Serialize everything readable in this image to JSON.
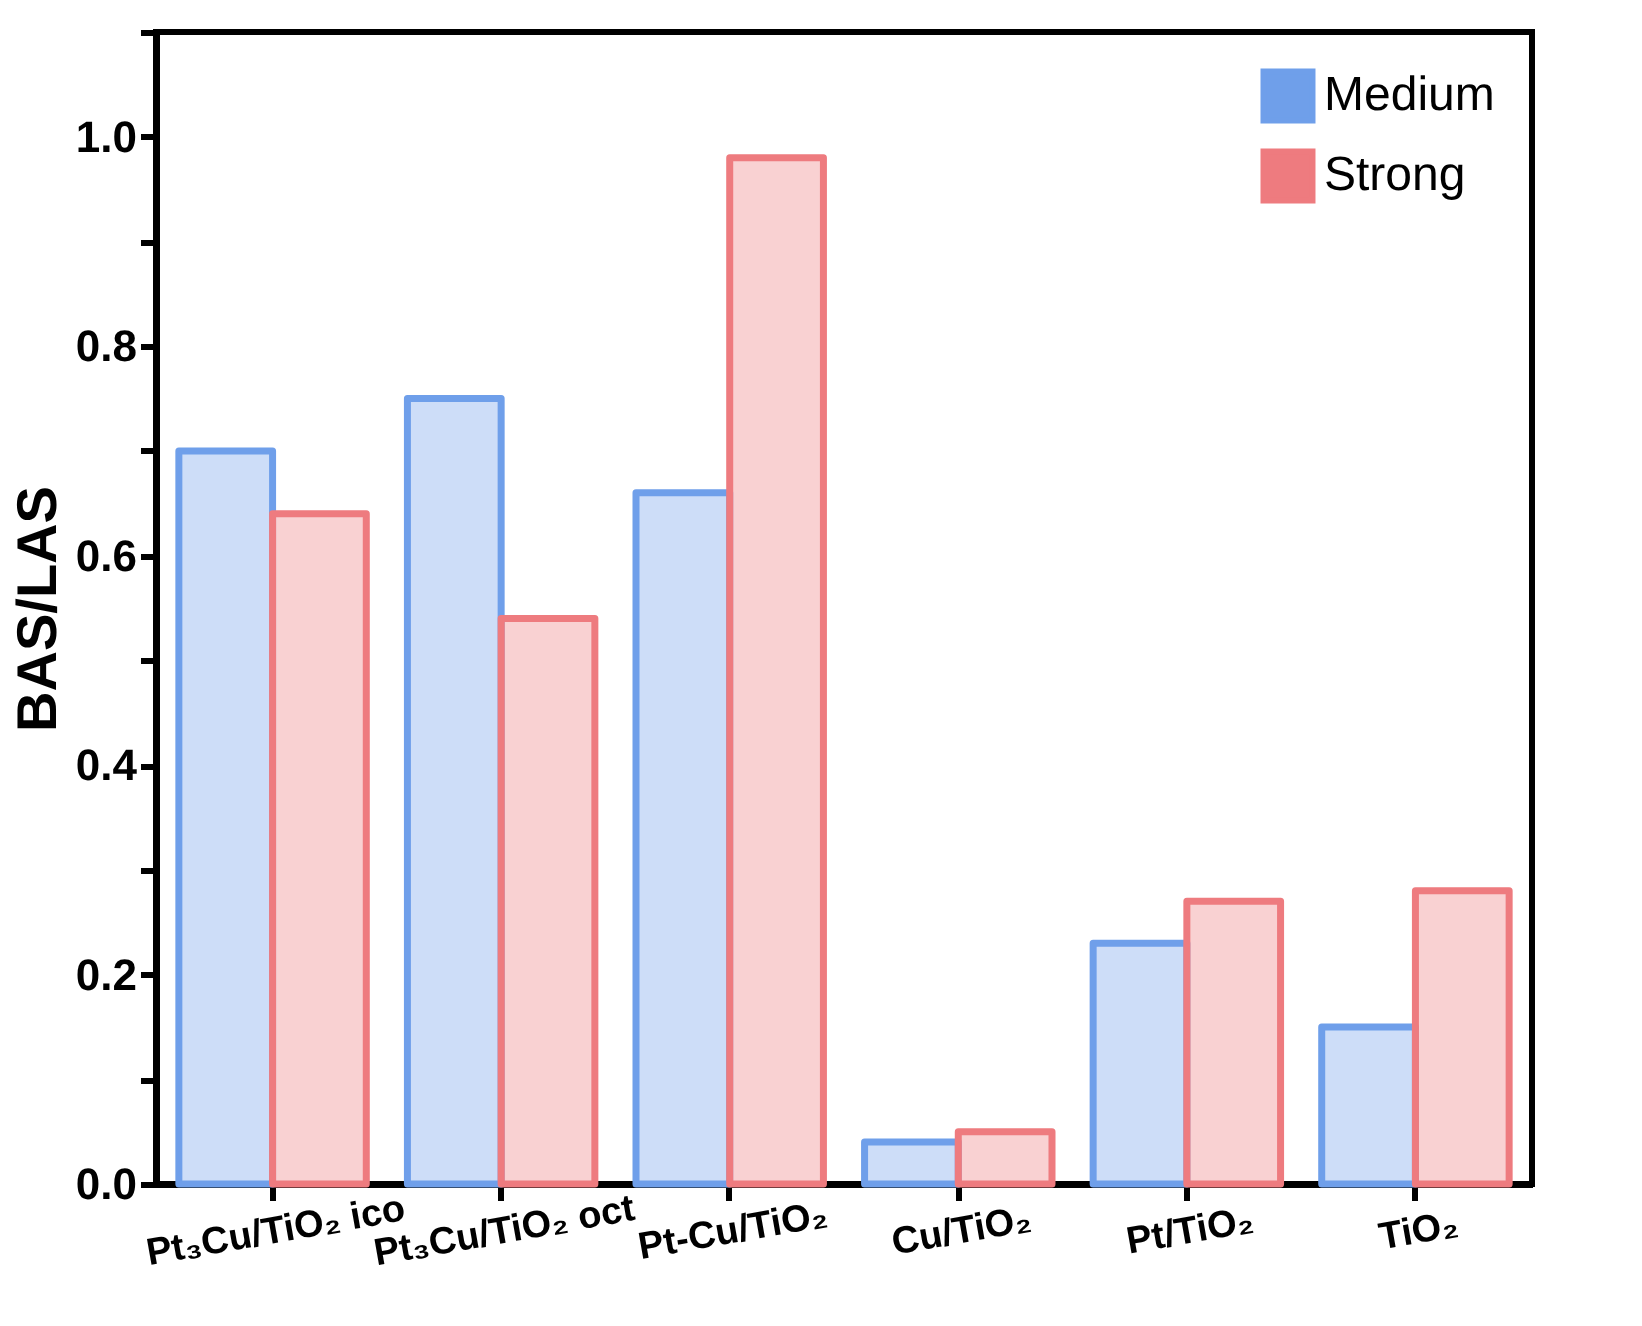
{
  "chart_data": {
    "type": "bar",
    "ylabel": "BAS/LAS",
    "categories": [
      "Pt₃Cu/TiO₂ ico",
      "Pt₃Cu/TiO₂ oct",
      "Pt-Cu/TiO₂",
      "Cu/TiO₂",
      "Pt/TiO₂",
      "TiO₂"
    ],
    "series": [
      {
        "name": "Medium",
        "color": "#6f9fea",
        "values": [
          0.7,
          0.75,
          0.66,
          0.04,
          0.23,
          0.15
        ]
      },
      {
        "name": "Strong",
        "color": "#ee7b7f",
        "values": [
          0.64,
          0.54,
          0.98,
          0.05,
          0.27,
          0.28
        ]
      }
    ],
    "ylim": [
      0,
      1.1
    ],
    "yticks": [
      {
        "value": 0,
        "label": "0.0"
      },
      {
        "value": 0.1,
        "label": null
      },
      0.2,
      {
        "value": 0.3,
        "label": null
      },
      0.4,
      {
        "value": 0.5,
        "label": null
      },
      0.6,
      {
        "value": 0.7,
        "label": null
      },
      0.8,
      {
        "value": 0.9,
        "label": null
      },
      {
        "value": 1,
        "label": "1.0"
      },
      {
        "value": 1.1,
        "label": null
      }
    ],
    "legend": "top right",
    "grid": false
  }
}
